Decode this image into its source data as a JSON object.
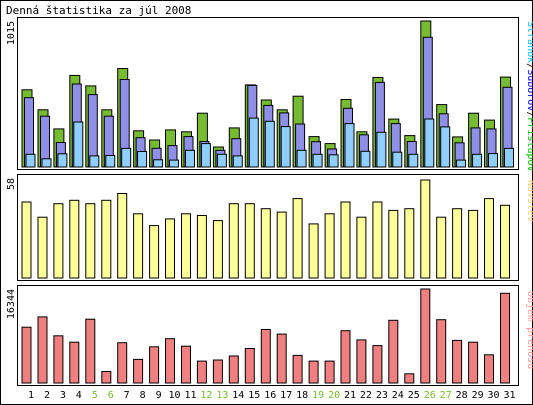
{
  "chart_data": [
    {
      "type": "bar",
      "title": "Denná štatistika za júl 2008",
      "ymax_label": "1015",
      "legend": [
        {
          "label": "Stránok",
          "color": "#00c0ff"
        },
        {
          "label": "Súborov",
          "color": "#0000ff"
        },
        {
          "label": "Prístupov",
          "color": "#00c000"
        }
      ],
      "legend_separator": "/",
      "categories": [
        "1",
        "2",
        "3",
        "4",
        "5",
        "6",
        "7",
        "8",
        "9",
        "10",
        "11",
        "12",
        "13",
        "14",
        "15",
        "16",
        "17",
        "18",
        "19",
        "20",
        "21",
        "22",
        "23",
        "24",
        "25",
        "26",
        "27",
        "28",
        "29",
        "30",
        "31"
      ],
      "weekend_days": [
        "5",
        "6",
        "12",
        "13",
        "19",
        "20",
        "26",
        "27"
      ],
      "ylim": [
        0,
        1015
      ],
      "series": [
        {
          "name": "Prístupov",
          "color": "#77bb33",
          "values": [
            537,
            398,
            265,
            637,
            564,
            398,
            685,
            252,
            188,
            258,
            245,
            374,
            139,
            272,
            571,
            466,
            398,
            492,
            211,
            163,
            469,
            245,
            622,
            333,
            218,
            1015,
            434,
            209,
            374,
            326,
            625
          ]
        },
        {
          "name": "Súborov",
          "color": "#8f8fe8",
          "values": [
            482,
            353,
            170,
            577,
            503,
            353,
            608,
            204,
            130,
            149,
            211,
            177,
            116,
            197,
            567,
            428,
            376,
            299,
            176,
            125,
            408,
            224,
            588,
            302,
            177,
            902,
            370,
            168,
            272,
            265,
            554
          ]
        },
        {
          "name": "Stránok",
          "color": "#8fcfff",
          "values": [
            88,
            57,
            92,
            313,
            77,
            80,
            129,
            108,
            50,
            48,
            116,
            163,
            88,
            77,
            340,
            318,
            281,
            116,
            88,
            85,
            302,
            109,
            241,
            103,
            88,
            334,
            279,
            48,
            88,
            93,
            129
          ]
        }
      ]
    },
    {
      "type": "bar",
      "ymax_label": "58",
      "legend": [
        {
          "label": "Návštev",
          "color": "#f0d070"
        }
      ],
      "categories": [
        "1",
        "2",
        "3",
        "4",
        "5",
        "6",
        "7",
        "8",
        "9",
        "10",
        "11",
        "12",
        "13",
        "14",
        "15",
        "16",
        "17",
        "18",
        "19",
        "20",
        "21",
        "22",
        "23",
        "24",
        "25",
        "26",
        "27",
        "28",
        "29",
        "30",
        "31"
      ],
      "ylim": [
        0,
        58
      ],
      "series": [
        {
          "name": "Návštev",
          "color": "#ffff99",
          "values": [
            45,
            36,
            44,
            46,
            44,
            46,
            50,
            38,
            31,
            35,
            38,
            37,
            34,
            44,
            44,
            41,
            39,
            47,
            32,
            38,
            45,
            36,
            45,
            40,
            41,
            58,
            36,
            41,
            40,
            47,
            43
          ]
        }
      ]
    },
    {
      "type": "bar",
      "ymax_label": "16344",
      "legend": [
        {
          "label": "Objem prenosu",
          "color": "#ff9999"
        }
      ],
      "categories": [
        "1",
        "2",
        "3",
        "4",
        "5",
        "6",
        "7",
        "8",
        "9",
        "10",
        "11",
        "12",
        "13",
        "14",
        "15",
        "16",
        "17",
        "18",
        "19",
        "20",
        "21",
        "22",
        "23",
        "24",
        "25",
        "26",
        "27",
        "28",
        "29",
        "30",
        "31"
      ],
      "ylim": [
        0,
        16344
      ],
      "series": [
        {
          "name": "Objem prenosu",
          "color": "#f08080",
          "values": [
            9700,
            11500,
            8200,
            7100,
            11100,
            2000,
            7000,
            4100,
            6300,
            7700,
            6400,
            3800,
            4000,
            4700,
            6000,
            9300,
            8500,
            4800,
            3800,
            3800,
            9100,
            7500,
            6500,
            10900,
            1600,
            16344,
            11000,
            7400,
            7100,
            4900,
            15600
          ]
        }
      ]
    }
  ]
}
